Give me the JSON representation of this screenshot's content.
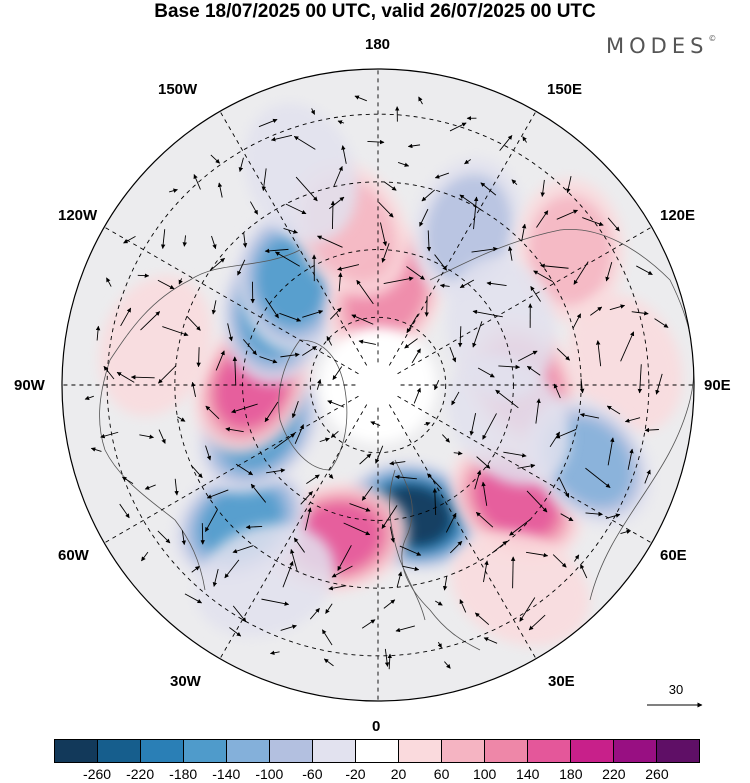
{
  "title": "Base 18/07/2025 00 UTC, valid 26/07/2025 00 UTC",
  "brand": {
    "name": "MODES",
    "mark": "©"
  },
  "longitude_labels": {
    "top": "180",
    "top_left": "150W",
    "top_right": "150E",
    "upper_left": "120W",
    "upper_right": "120E",
    "left": "90W",
    "right": "90E",
    "lower_left": "60W",
    "lower_right": "60E",
    "bottom_left": "30W",
    "bottom_right": "30E",
    "bottom": "0"
  },
  "reference_vector": {
    "value": "30"
  },
  "colorbar": {
    "labels": [
      "-260",
      "-220",
      "-180",
      "-140",
      "-100",
      "-60",
      "-20",
      "20",
      "60",
      "100",
      "140",
      "180",
      "220",
      "260"
    ],
    "colors": [
      "#12395a",
      "#165e8d",
      "#2a7fb6",
      "#4f9bcb",
      "#84b0da",
      "#b3c0e0",
      "#e2e2ef",
      "#ffffff",
      "#fadadd",
      "#f5b4c2",
      "#ee87a8",
      "#e4579a",
      "#c8208a",
      "#980f82",
      "#5f0f66"
    ]
  },
  "anomaly_blobs": [
    {
      "lon": 15,
      "lat": 60,
      "value": -280
    },
    {
      "lon": -15,
      "lat": 55,
      "value": 160
    },
    {
      "lon": 50,
      "lat": 50,
      "value": 170
    },
    {
      "lon": -45,
      "lat": 47,
      "value": -170
    },
    {
      "lon": -70,
      "lat": 62,
      "value": -170
    },
    {
      "lon": -90,
      "lat": 62,
      "value": 160
    },
    {
      "lon": -125,
      "lat": 62,
      "value": -170
    },
    {
      "lon": -140,
      "lat": 60,
      "value": -170
    },
    {
      "lon": 175,
      "lat": 70,
      "value": 140
    },
    {
      "lon": -170,
      "lat": 55,
      "value": 80
    },
    {
      "lon": 150,
      "lat": 50,
      "value": -80
    },
    {
      "lon": 125,
      "lat": 38,
      "value": 80
    },
    {
      "lon": 95,
      "lat": 35,
      "value": 70
    },
    {
      "lon": 90,
      "lat": 58,
      "value": 130
    },
    {
      "lon": 70,
      "lat": 40,
      "value": -120
    },
    {
      "lon": 75,
      "lat": 60,
      "value": -60
    },
    {
      "lon": 115,
      "lat": 60,
      "value": -60
    },
    {
      "lon": -100,
      "lat": 40,
      "value": 70
    },
    {
      "lon": -160,
      "lat": 40,
      "value": -50
    },
    {
      "lon": 35,
      "lat": 35,
      "value": 60
    },
    {
      "lon": -30,
      "lat": 40,
      "value": -60
    }
  ]
}
